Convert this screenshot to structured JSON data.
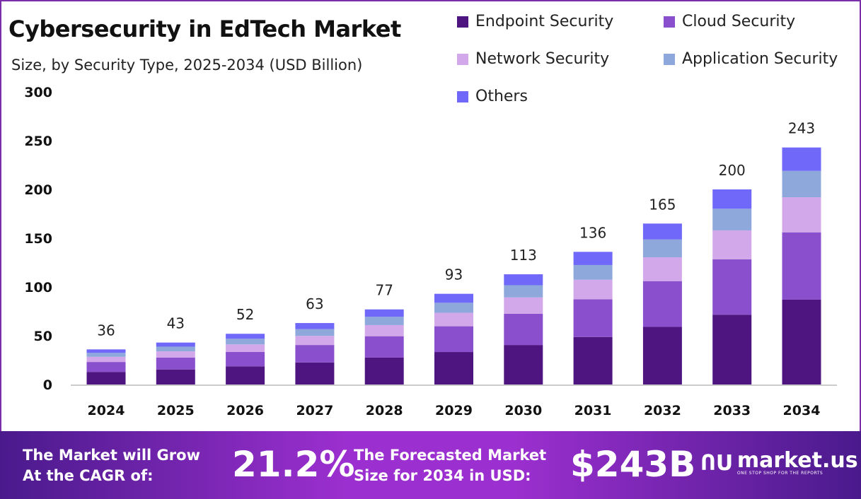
{
  "chart_data": {
    "type": "bar",
    "stacked": true,
    "title": "Cybersecurity in EdTech Market",
    "subtitle": "Size, by Security Type, 2025-2034 (USD Billion)",
    "categories": [
      "2024",
      "2025",
      "2026",
      "2027",
      "2028",
      "2029",
      "2030",
      "2031",
      "2032",
      "2033",
      "2034"
    ],
    "totals": [
      "36",
      "43",
      "52",
      "63",
      "77",
      "93",
      "113",
      "136",
      "165",
      "200",
      "243"
    ],
    "series": [
      {
        "name": "Endpoint Security",
        "color": "#4e1581",
        "values": [
          12.9,
          15.4,
          18.6,
          22.6,
          27.6,
          33.3,
          40.5,
          48.7,
          59.1,
          71.6,
          87
        ]
      },
      {
        "name": "Cloud Security",
        "color": "#8a4fcc",
        "values": [
          10.2,
          12.2,
          14.8,
          17.9,
          21.9,
          26.4,
          32.1,
          38.6,
          46.9,
          56.8,
          69
        ]
      },
      {
        "name": "Network Security",
        "color": "#d3a8ea",
        "values": [
          5.3,
          6.4,
          7.7,
          9.3,
          11.4,
          13.8,
          16.7,
          20.1,
          24.4,
          29.6,
          36
        ]
      },
      {
        "name": "Application Security",
        "color": "#8fa8dc",
        "values": [
          4.0,
          4.8,
          5.8,
          7.0,
          8.5,
          10.3,
          12.5,
          15.1,
          18.3,
          22.2,
          27
        ]
      },
      {
        "name": "Others",
        "color": "#7068f8",
        "values": [
          3.6,
          4.2,
          5.1,
          6.2,
          7.6,
          9.2,
          11.2,
          13.5,
          16.3,
          19.8,
          24
        ]
      }
    ],
    "yticks": [
      "0",
      "50",
      "100",
      "150",
      "200",
      "250",
      "300"
    ],
    "ylim": [
      0,
      300
    ],
    "grid": false,
    "legend_placement": "top-right"
  },
  "footer": {
    "cagr_label_1": "The Market will Grow",
    "cagr_label_2": "At the CAGR of:",
    "cagr_value": "21.2%",
    "forecast_label_1": "The Forecasted Market",
    "forecast_label_2": "Size for 2034 in USD:",
    "forecast_value": "$243B",
    "brand": "market.us",
    "brand_tagline": "ONE STOP SHOP FOR THE REPORTS"
  }
}
